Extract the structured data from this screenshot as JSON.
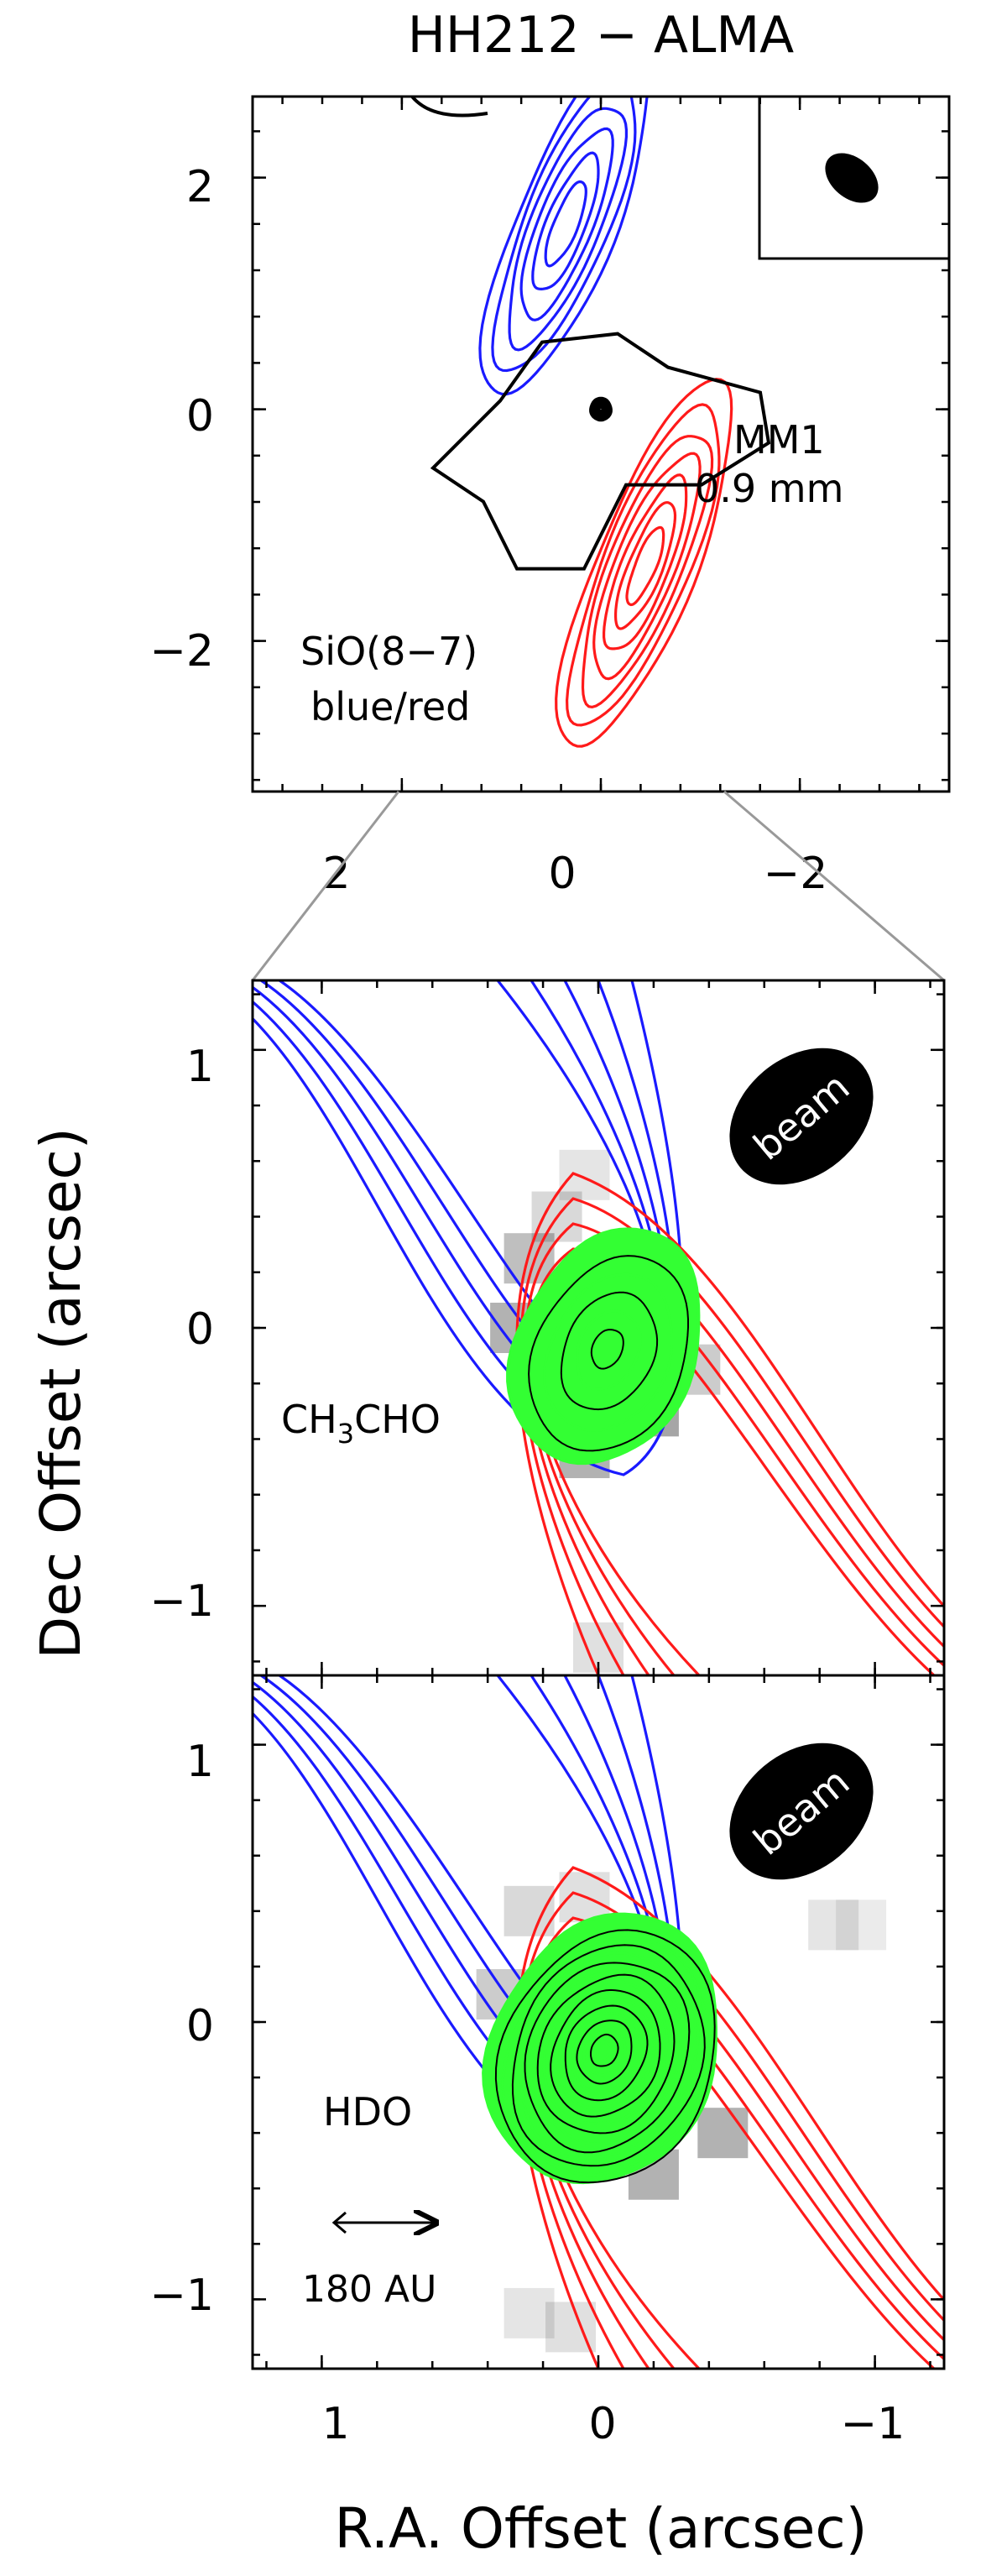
{
  "title": "HH212 − ALMA",
  "colors": {
    "blue_lobe": "#1a1aff",
    "red_lobe": "#ff1a1a",
    "dust_continuum": "#000000",
    "green_emission": "#33ff33",
    "connector": "#999999"
  },
  "chart_data": [
    {
      "type": "contour",
      "panel": "top",
      "xlabel": "",
      "ylabel": "",
      "xlim": [
        3.5,
        -3.5
      ],
      "ylim": [
        -3.3,
        2.7
      ],
      "xticks": [
        2,
        0,
        -2
      ],
      "yticks": [
        2,
        0,
        -2
      ],
      "xtick_labels": [
        "2",
        "0",
        "−2"
      ],
      "ytick_labels": [
        "2",
        "0",
        "−2"
      ],
      "annotations": {
        "continuum_name": "MM1",
        "continuum_band": "0.9 mm",
        "line_name": "SiO(8−7)",
        "line_lobes": "blue/red"
      },
      "series": [
        {
          "name": "SiO(8−7) blue",
          "color": "#1a1aff",
          "center": [
            0.35,
            1.6
          ],
          "pa_deg": 22,
          "semi_major": 1.6,
          "semi_minor": 0.5,
          "levels": 6
        },
        {
          "name": "SiO(8−7) red",
          "color": "#ff1a1a",
          "center": [
            -0.45,
            -1.35
          ],
          "pa_deg": 22,
          "semi_major": 1.7,
          "semi_minor": 0.5,
          "levels": 7
        },
        {
          "name": "0.9 mm continuum",
          "color": "#000000",
          "center": [
            0,
            0
          ],
          "pa_deg": 0,
          "semi_major": 0.42,
          "semi_minor": 0.4,
          "levels": 6
        }
      ],
      "beam": {
        "pa_deg": -30,
        "major": 0.5,
        "minor": 0.33
      }
    },
    {
      "type": "contour",
      "panel": "middle",
      "xlim": [
        1.25,
        -1.25
      ],
      "ylim": [
        -1.25,
        1.25
      ],
      "xticks": [
        1,
        0,
        -1
      ],
      "yticks": [
        1,
        0,
        -1
      ],
      "ytick_labels": [
        "1",
        "0",
        "−1"
      ],
      "species_main": "CH",
      "species_sub": "3",
      "species_tail": "CHO",
      "beam_label": "beam",
      "emission": {
        "center": [
          -0.03,
          -0.07
        ],
        "pa_deg": 25,
        "semi_major": 0.44,
        "semi_minor": 0.32,
        "levels": 5
      }
    },
    {
      "type": "contour",
      "panel": "bottom",
      "xlabel": "R.A. Offset (arcsec)",
      "shared_ylabel": "Dec Offset (arcsec)",
      "xlim": [
        1.25,
        -1.25
      ],
      "ylim": [
        -1.25,
        1.25
      ],
      "xticks": [
        1,
        0,
        -1
      ],
      "yticks": [
        1,
        0,
        -1
      ],
      "xtick_labels": [
        "1",
        "0",
        "−1"
      ],
      "ytick_labels": [
        "1",
        "0",
        "−1"
      ],
      "species": "HDO",
      "beam_label": "beam",
      "scale_bar": "180 AU",
      "emission": {
        "center": [
          -0.02,
          -0.1
        ],
        "pa_deg": 25,
        "semi_major": 0.5,
        "semi_minor": 0.4,
        "levels": 16
      }
    }
  ]
}
